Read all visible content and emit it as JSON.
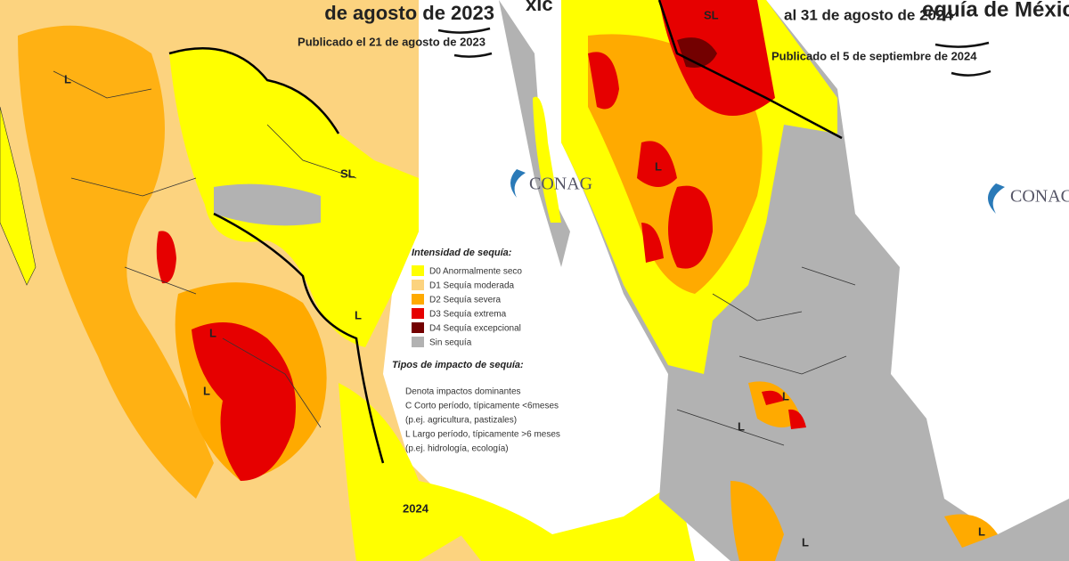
{
  "left_map": {
    "title": "de agosto de 2023",
    "subtitle": "Publicado el 21 de agosto de 2023",
    "region_labels": [
      "L",
      "SL",
      "L",
      "L",
      "L",
      "2024"
    ]
  },
  "middle_fragment": "xic",
  "right_map": {
    "title": "equía de México",
    "subtitle_1": "al 31 de agosto de 2024",
    "subtitle_2": "Publicado el 5 de septiembre de 2024",
    "region_labels": [
      "SL",
      "L",
      "L",
      "L",
      "L",
      "L"
    ]
  },
  "logos": [
    "CONAG",
    "CONAC"
  ],
  "legend": {
    "heading": "Intensidad de sequía:",
    "items": [
      {
        "label": "D0 Anormalmente seco",
        "color": "#ffff00"
      },
      {
        "label": "D1 Sequía moderada",
        "color": "#fcd37f"
      },
      {
        "label": "D2 Sequía severa",
        "color": "#ffaa00"
      },
      {
        "label": "D3 Sequía extrema",
        "color": "#e60000"
      },
      {
        "label": "D4 Sequía excepcional",
        "color": "#730000"
      },
      {
        "label": "Sin sequía",
        "color": "#b2b2b2"
      }
    ],
    "impact_heading": "Tipos de impacto de sequía:",
    "impact_items": [
      "Denota impactos dominantes",
      "C Corto período, típicamente <6meses",
      "(p.ej. agricultura, pastizales)",
      "L Largo período, típicamente >6 meses",
      "(p.ej. hidrología, ecología)"
    ]
  }
}
